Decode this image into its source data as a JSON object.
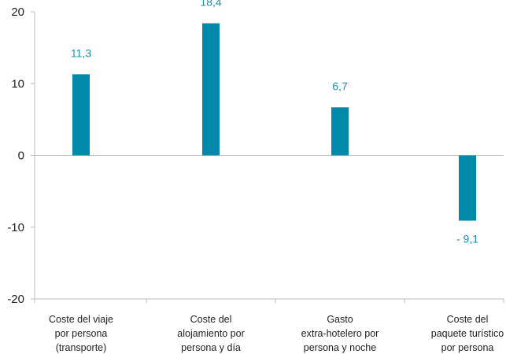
{
  "chart_data": {
    "type": "bar",
    "categories": [
      [
        "Coste del viaje",
        "por persona",
        "(transporte)"
      ],
      [
        "Coste del",
        "alojamiento por",
        "persona y día"
      ],
      [
        "Gasto",
        "extra-hotelero por",
        "persona y noche"
      ],
      [
        "Coste del",
        "paquete turístico",
        "por persona"
      ]
    ],
    "values": [
      11.3,
      18.4,
      6.7,
      -9.1
    ],
    "data_labels": [
      "11,3",
      "18,4",
      "6,7",
      "- 9,1"
    ],
    "ylim": [
      -20,
      20
    ],
    "yticks": [
      -20,
      -10,
      0,
      10,
      20
    ],
    "ytick_labels": [
      "-20",
      "-10",
      "0",
      "10",
      "20"
    ],
    "title": "",
    "xlabel": "",
    "ylabel": "",
    "grid": false,
    "colors": {
      "bar": "#0089a8",
      "data_label": "#1a8fae",
      "axis": "#bdbdbd"
    }
  }
}
